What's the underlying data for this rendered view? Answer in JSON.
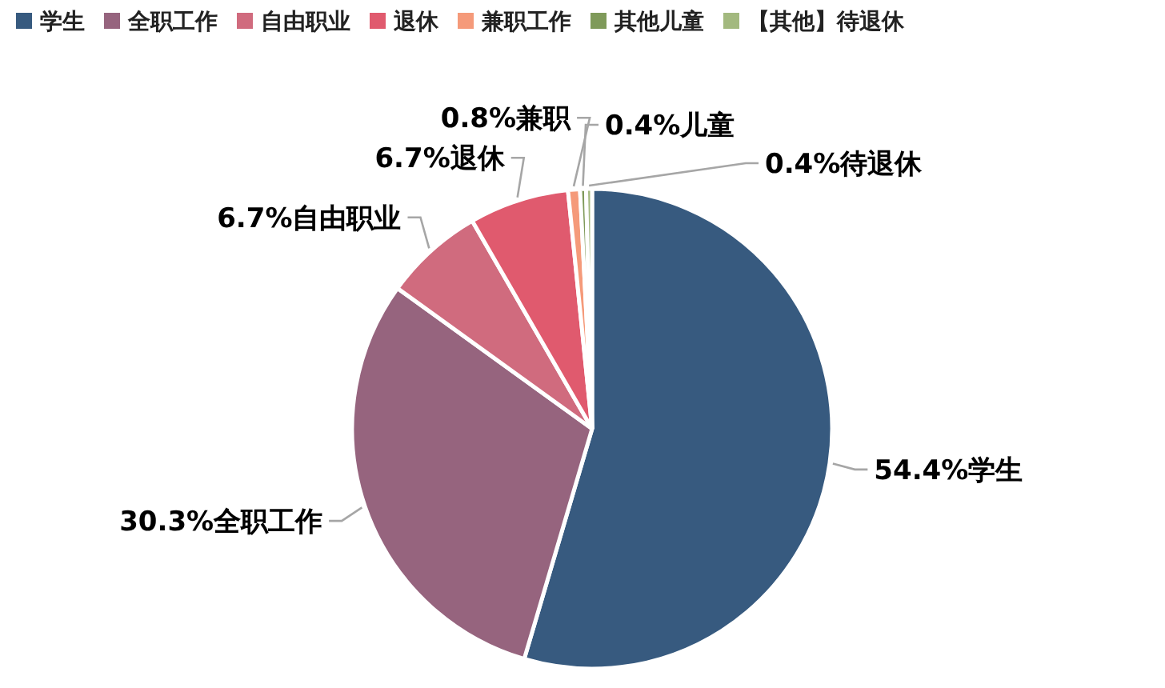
{
  "chart_data": {
    "type": "pie",
    "legend": "top",
    "categories": [
      "学生",
      "全职工作",
      "自由职业",
      "退休",
      "兼职工作",
      "其他儿童",
      "【其他】待退休"
    ],
    "values": [
      54.4,
      30.3,
      6.7,
      6.7,
      0.8,
      0.4,
      0.4
    ],
    "value_labels": [
      "54.4%学生",
      "30.3%全职工作",
      "6.7%自由职业",
      "6.7%退休",
      "0.8%兼职",
      "0.4%儿童",
      "0.4%待退休"
    ],
    "colors": [
      "#375a7f",
      "#96647e",
      "#d06b7e",
      "#e05a6e",
      "#f59a7a",
      "#7f9a5a",
      "#a3b97f"
    ]
  }
}
